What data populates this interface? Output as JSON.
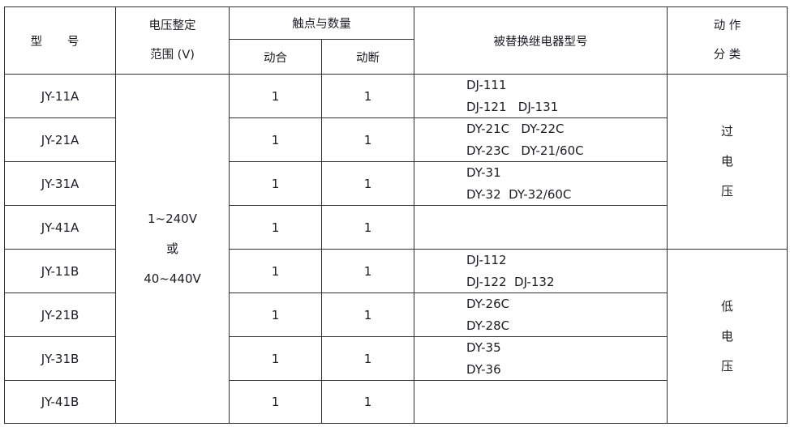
{
  "header": {
    "model": "型 号",
    "voltage_line1": "电压整定",
    "voltage_line2": "范围 (V)",
    "contacts": "触点与数量",
    "make": "动合",
    "break": "动断",
    "replaced": "被替换继电器型号",
    "action_line1": "动 作",
    "action_line2": "分 类"
  },
  "voltage_range": {
    "line1": "1~240V",
    "line2": "或",
    "line3": "40~440V"
  },
  "action_groups": [
    {
      "chars": [
        "过",
        "电",
        "压"
      ]
    },
    {
      "chars": [
        "低",
        "电",
        "压"
      ]
    }
  ],
  "rows": [
    {
      "model": "JY-11A",
      "make": "1",
      "break": "1",
      "replaced": [
        "DJ-111",
        "DJ-121   DJ-131"
      ]
    },
    {
      "model": "JY-21A",
      "make": "1",
      "break": "1",
      "replaced": [
        "DY-21C   DY-22C",
        "DY-23C   DY-21/60C"
      ]
    },
    {
      "model": "JY-31A",
      "make": "1",
      "break": "1",
      "replaced": [
        "DY-31",
        "DY-32  DY-32/60C"
      ]
    },
    {
      "model": "JY-41A",
      "make": "1",
      "break": "1",
      "replaced": []
    },
    {
      "model": "JY-11B",
      "make": "1",
      "break": "1",
      "replaced": [
        "DJ-112",
        "DJ-122  DJ-132"
      ]
    },
    {
      "model": "JY-21B",
      "make": "1",
      "break": "1",
      "replaced": [
        "DY-26C",
        "DY-28C"
      ]
    },
    {
      "model": "JY-31B",
      "make": "1",
      "break": "1",
      "replaced": [
        "DY-35",
        "DY-36"
      ]
    },
    {
      "model": "JY-41B",
      "make": "1",
      "break": "1",
      "replaced": []
    }
  ]
}
